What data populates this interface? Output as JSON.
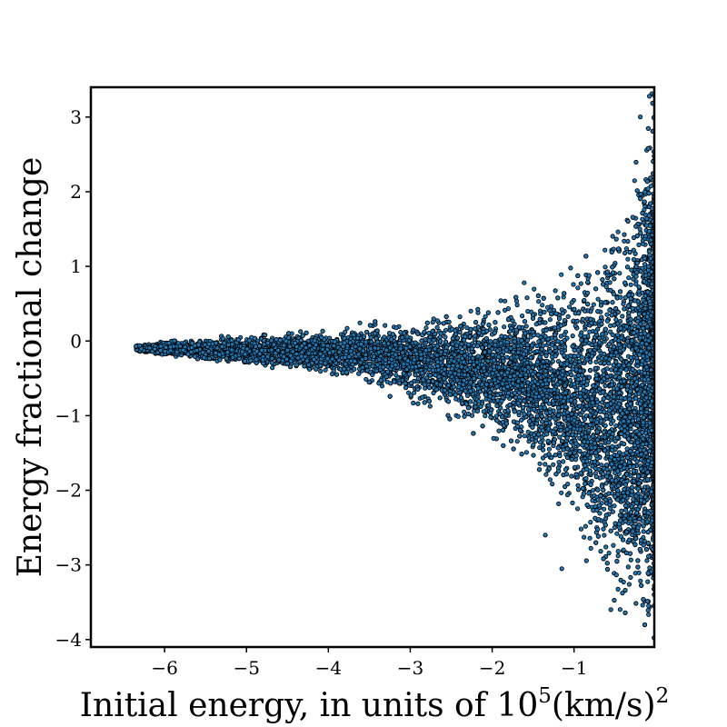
{
  "chart_data": {
    "type": "scatter",
    "title": "",
    "xlabel": "Initial energy, in units of 10",
    "xlabel_exponent": "5",
    "xlabel_units": "(km/s)",
    "xlabel_units_exponent": "2",
    "ylabel": "Energy fractional change",
    "xlim": [
      -6.9,
      -0.02
    ],
    "ylim": [
      -4.1,
      3.4
    ],
    "xticks": [
      -6,
      -5,
      -4,
      -3,
      -2,
      -1
    ],
    "xtick_labels": [
      "−6",
      "−5",
      "−4",
      "−3",
      "−2",
      "−1"
    ],
    "yticks": [
      -4,
      -3,
      -2,
      -1,
      0,
      1,
      2,
      3
    ],
    "ytick_labels": [
      "−4",
      "−3",
      "−2",
      "−1",
      "0",
      "1",
      "2",
      "3"
    ],
    "grid": false,
    "legend": "none",
    "marker_fill": "#1f77b4",
    "marker_edge": "#000000",
    "envelope": {
      "x": [
        -6.35,
        -6.0,
        -5.5,
        -5.0,
        -4.5,
        -4.0,
        -3.5,
        -3.0,
        -2.5,
        -2.0,
        -1.5,
        -1.0,
        -0.7,
        -0.4,
        -0.2,
        -0.02
      ],
      "upper": [
        -0.05,
        0.0,
        0.05,
        0.08,
        0.12,
        0.18,
        0.25,
        0.32,
        0.4,
        0.5,
        0.7,
        0.95,
        1.35,
        1.8,
        2.6,
        3.3
      ],
      "lower": [
        -0.15,
        -0.2,
        -0.28,
        -0.32,
        -0.38,
        -0.45,
        -0.6,
        -0.8,
        -1.05,
        -1.3,
        -1.7,
        -2.4,
        -3.2,
        -3.9,
        -4.1,
        -4.1
      ]
    },
    "notable_points": [
      {
        "x": -6.35,
        "y": -0.07
      },
      {
        "x": -1.15,
        "y": -3.05
      },
      {
        "x": -1.35,
        "y": -2.6
      },
      {
        "x": -0.08,
        "y": 3.28
      },
      {
        "x": -0.55,
        "y": -3.6
      }
    ]
  }
}
